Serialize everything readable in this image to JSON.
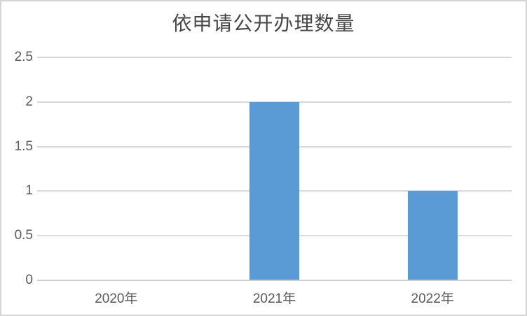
{
  "window": {
    "background": "#ffffff",
    "border_color": "#d4d4d4"
  },
  "chart_data": {
    "type": "bar",
    "title": "依申请公开办理数量",
    "categories": [
      "2020年",
      "2021年",
      "2022年"
    ],
    "values": [
      0,
      2,
      1
    ],
    "xlabel": "",
    "ylabel": "",
    "ylim": [
      0,
      2.5
    ],
    "ytick_interval": 0.5,
    "yticks": [
      "0",
      "0.5",
      "1",
      "1.5",
      "2",
      "2.5"
    ],
    "grid": "horizontal",
    "legend": "none",
    "colors": {
      "bar": "#5b9bd5",
      "gridline": "#d9d9d9",
      "axis_line": "#cfcfcf",
      "tick_label": "#595959",
      "title": "#474747"
    }
  }
}
